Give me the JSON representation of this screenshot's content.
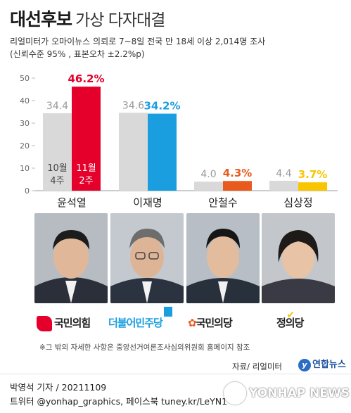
{
  "header": {
    "title_bold": "대선후보",
    "title_light": "가상 다자대결",
    "subtitle": "리얼미터가 오마이뉴스 의뢰로 7~8일 전국 만 18세 이상 2,014명 조사",
    "note": "(신뢰수준 95% , 표본오차 ±2.2%p)"
  },
  "chart_data": {
    "type": "bar",
    "title": "",
    "xlabel": "",
    "ylabel": "",
    "ylim": [
      0,
      50
    ],
    "yticks": [
      "0",
      "10",
      "20",
      "30",
      "40",
      "50"
    ],
    "grid": false,
    "categories": [
      "윤석열",
      "이재명",
      "안철수",
      "심상정"
    ],
    "series": [
      {
        "name": "10월 4주",
        "name_line1": "10월",
        "name_line2": "4주",
        "color": "#d9d9d9",
        "values": [
          34.4,
          34.6,
          4.0,
          4.4
        ],
        "labels": [
          "34.4",
          "34.6",
          "4.0",
          "4.4"
        ]
      },
      {
        "name": "11월 2주",
        "name_line1": "11월",
        "name_line2": "2주",
        "color_by_category": [
          "#e4002b",
          "#1a9ee0",
          "#e85a1e",
          "#f7c600"
        ],
        "values": [
          46.2,
          34.2,
          4.3,
          3.7
        ],
        "labels": [
          "46.2%",
          "34.2%",
          "4.3%",
          "3.7%"
        ]
      }
    ]
  },
  "parties": [
    {
      "name": "국민의힘",
      "color": "#e4002b",
      "icon": "ppp-logo-icon"
    },
    {
      "name": "더불어민주당",
      "color": "#1a9ee0",
      "icon": "democratic-party-logo-icon"
    },
    {
      "name": "국민의당",
      "color": "#e85a1e",
      "icon": "peoples-party-logo-icon"
    },
    {
      "name": "정의당",
      "color": "#f7c600",
      "icon": "justice-party-logo-icon"
    }
  ],
  "footer": {
    "footnote": "※그 밖의 자세한 사항은 중앙선거여론조사심의위원회 홈페이지 참조",
    "source": "자료/ 리얼미터",
    "agency": "연합뉴스",
    "reporter": "박영석 기자 / 20211109",
    "twitter": "트위터 @yonhap_graphics, 페이스북 tuney.kr/LeYN1",
    "watermark": "YONHAP NEWS"
  }
}
